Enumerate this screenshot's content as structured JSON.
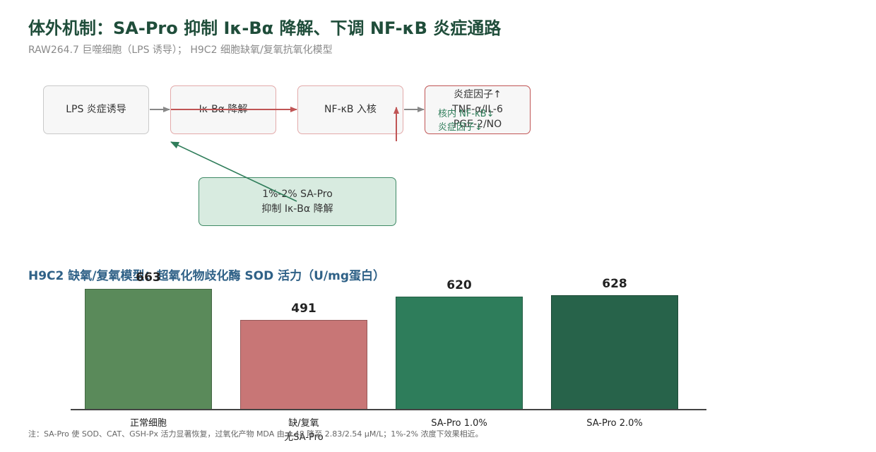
{
  "header": {
    "title": "体外机制：SA-Pro 抑制 Iκ-Bα 降解、下调 NF-κB 炎症通路",
    "subtitle": "RAW264.7 巨噬细胞（LPS 诱导）； H9C2 细胞缺氧/复氧抗氧化模型"
  },
  "pathway": {
    "nodes": [
      {
        "lines": [
          "LPS 炎症诱导"
        ]
      },
      {
        "lines": [
          "Iκ-Bα 降解"
        ]
      },
      {
        "lines": [
          "NF-κB 入核"
        ]
      },
      {
        "lines": [
          "炎症因子↑",
          "TNF-α/IL-6",
          "PGE-2/NO"
        ]
      }
    ],
    "intervention": {
      "lines": [
        "1%-2% SA-Pro",
        "抑制 Iκ-Bα 降解"
      ]
    },
    "effects": [
      "核内 NF-κB↓",
      "炎症因子↓"
    ]
  },
  "chart_data": {
    "type": "bar",
    "title": "H9C2 缺氧/复氧模型：超氧化物歧化酶 SOD 活力（U/mg蛋白）",
    "categories": [
      "正常细胞",
      "缺/复氧\n无SA-Pro",
      "SA-Pro 1.0%",
      "SA-Pro 2.0%"
    ],
    "values": [
      663,
      491,
      620,
      628
    ],
    "colors": [
      "#5a8a5a",
      "#c87676",
      "#2e7d5b",
      "#27634a"
    ],
    "ylim": [
      0,
      680
    ]
  },
  "footnote": "注：SA-Pro 使 SOD、CAT、GSH-Px 活力显著恢复，过氧化产物 MDA 由 4.48 降至 2.83/2.54 μM/L；1%-2% 浓度下效果相近。"
}
